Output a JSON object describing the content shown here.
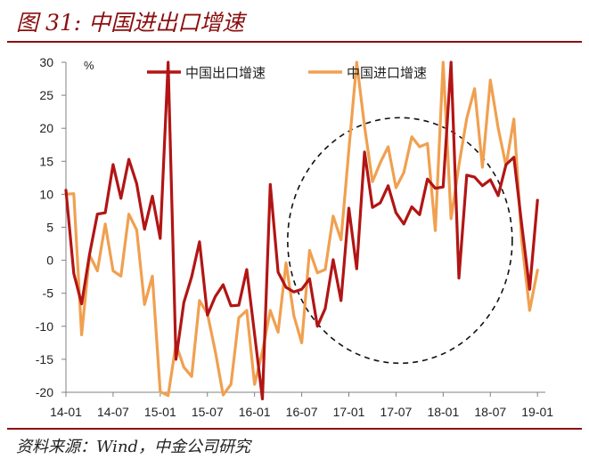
{
  "figure": {
    "title": "图 31:  中国进出口增速",
    "source": "资料来源：Wind，中金公司研究"
  },
  "colors": {
    "export": "#b21515",
    "import": "#f0a050",
    "frame": "#8b0f0f",
    "axis": "#808080"
  },
  "chart_data": {
    "type": "line",
    "title": "",
    "xlabel": "",
    "ylabel": "",
    "unit": "%",
    "ylim": [
      -20,
      30
    ],
    "yticks": [
      -20,
      -15,
      -10,
      -5,
      0,
      5,
      10,
      15,
      20,
      25,
      30
    ],
    "xlim": [
      "2014-01",
      "2019-02"
    ],
    "xticks": [
      "14-01",
      "14-07",
      "15-01",
      "15-07",
      "16-01",
      "16-07",
      "17-01",
      "17-07",
      "18-01",
      "18-07",
      "19-01"
    ],
    "grid": false,
    "legend_position": "top",
    "annotation": "dashed circle highlighting 2017-2018",
    "series": [
      {
        "name": "中国出口增速",
        "color": "#b21515",
        "points": [
          [
            "2014-01",
            10.6
          ],
          [
            "2014-02",
            -2.0
          ],
          [
            "2014-03",
            -6.6
          ],
          [
            "2014-04",
            0.9
          ],
          [
            "2014-05",
            7.0
          ],
          [
            "2014-06",
            7.2
          ],
          [
            "2014-07",
            14.5
          ],
          [
            "2014-08",
            9.4
          ],
          [
            "2014-09",
            15.3
          ],
          [
            "2014-10",
            11.6
          ],
          [
            "2014-11",
            4.7
          ],
          [
            "2014-12",
            9.7
          ],
          [
            "2015-01",
            3.3
          ],
          [
            "2015-02",
            48.3
          ],
          [
            "2015-03",
            -15.0
          ],
          [
            "2015-04",
            -6.4
          ],
          [
            "2015-05",
            -2.5
          ],
          [
            "2015-06",
            2.8
          ],
          [
            "2015-07",
            -8.3
          ],
          [
            "2015-08",
            -5.5
          ],
          [
            "2015-09",
            -3.7
          ],
          [
            "2015-10",
            -6.9
          ],
          [
            "2015-11",
            -6.8
          ],
          [
            "2015-12",
            -1.4
          ],
          [
            "2016-01",
            -11.2
          ],
          [
            "2016-02",
            -25.4
          ],
          [
            "2016-03",
            11.5
          ],
          [
            "2016-04",
            -1.8
          ],
          [
            "2016-05",
            -4.1
          ],
          [
            "2016-06",
            -4.8
          ],
          [
            "2016-07",
            -4.4
          ],
          [
            "2016-08",
            -2.8
          ],
          [
            "2016-09",
            -10.0
          ],
          [
            "2016-10",
            -7.3
          ],
          [
            "2016-11",
            0.1
          ],
          [
            "2016-12",
            -6.1
          ],
          [
            "2017-01",
            7.9
          ],
          [
            "2017-02",
            -1.3
          ],
          [
            "2017-03",
            16.4
          ],
          [
            "2017-04",
            8.0
          ],
          [
            "2017-05",
            8.7
          ],
          [
            "2017-06",
            11.3
          ],
          [
            "2017-07",
            7.2
          ],
          [
            "2017-08",
            5.5
          ],
          [
            "2017-09",
            8.1
          ],
          [
            "2017-10",
            6.9
          ],
          [
            "2017-11",
            12.3
          ],
          [
            "2017-12",
            10.9
          ],
          [
            "2018-01",
            11.1
          ],
          [
            "2018-02",
            43.5
          ],
          [
            "2018-03",
            -2.7
          ],
          [
            "2018-04",
            12.9
          ],
          [
            "2018-05",
            12.6
          ],
          [
            "2018-06",
            11.3
          ],
          [
            "2018-07",
            12.2
          ],
          [
            "2018-08",
            9.8
          ],
          [
            "2018-09",
            14.5
          ],
          [
            "2018-10",
            15.6
          ],
          [
            "2018-11",
            5.4
          ],
          [
            "2018-12",
            -4.4
          ],
          [
            "2019-01",
            9.1
          ]
        ]
      },
      {
        "name": "中国进口增速",
        "color": "#f0a050",
        "points": [
          [
            "2014-01",
            10.0
          ],
          [
            "2014-02",
            10.1
          ],
          [
            "2014-03",
            -11.3
          ],
          [
            "2014-04",
            0.8
          ],
          [
            "2014-05",
            -1.6
          ],
          [
            "2014-06",
            5.5
          ],
          [
            "2014-07",
            -1.6
          ],
          [
            "2014-08",
            -2.4
          ],
          [
            "2014-09",
            7.0
          ],
          [
            "2014-10",
            4.6
          ],
          [
            "2014-11",
            -6.7
          ],
          [
            "2014-12",
            -2.4
          ],
          [
            "2015-01",
            -19.9
          ],
          [
            "2015-02",
            -20.5
          ],
          [
            "2015-03",
            -12.7
          ],
          [
            "2015-04",
            -16.2
          ],
          [
            "2015-05",
            -17.6
          ],
          [
            "2015-06",
            -6.1
          ],
          [
            "2015-07",
            -8.1
          ],
          [
            "2015-08",
            -13.8
          ],
          [
            "2015-09",
            -20.4
          ],
          [
            "2015-10",
            -18.8
          ],
          [
            "2015-11",
            -8.7
          ],
          [
            "2015-12",
            -7.6
          ],
          [
            "2016-01",
            -18.8
          ],
          [
            "2016-02",
            -13.8
          ],
          [
            "2016-03",
            -7.6
          ],
          [
            "2016-04",
            -10.9
          ],
          [
            "2016-05",
            -0.4
          ],
          [
            "2016-06",
            -8.4
          ],
          [
            "2016-07",
            -12.5
          ],
          [
            "2016-08",
            1.5
          ],
          [
            "2016-09",
            -1.9
          ],
          [
            "2016-10",
            -1.4
          ],
          [
            "2016-11",
            6.7
          ],
          [
            "2016-12",
            3.1
          ],
          [
            "2017-01",
            16.7
          ],
          [
            "2017-02",
            38.1
          ],
          [
            "2017-03",
            20.3
          ],
          [
            "2017-04",
            11.9
          ],
          [
            "2017-05",
            14.8
          ],
          [
            "2017-06",
            17.2
          ],
          [
            "2017-07",
            11.0
          ],
          [
            "2017-08",
            13.3
          ],
          [
            "2017-09",
            18.7
          ],
          [
            "2017-10",
            17.2
          ],
          [
            "2017-11",
            17.7
          ],
          [
            "2017-12",
            4.5
          ],
          [
            "2018-01",
            36.9
          ],
          [
            "2018-02",
            6.3
          ],
          [
            "2018-03",
            14.4
          ],
          [
            "2018-04",
            21.5
          ],
          [
            "2018-05",
            26.0
          ],
          [
            "2018-06",
            14.1
          ],
          [
            "2018-07",
            27.3
          ],
          [
            "2018-08",
            20.0
          ],
          [
            "2018-09",
            14.3
          ],
          [
            "2018-10",
            21.4
          ],
          [
            "2018-11",
            3.0
          ],
          [
            "2018-12",
            -7.6
          ],
          [
            "2019-01",
            -1.5
          ]
        ]
      }
    ]
  }
}
